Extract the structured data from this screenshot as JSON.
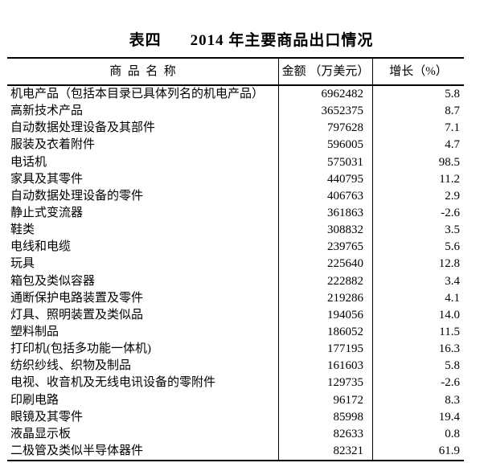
{
  "title": {
    "label": "表四",
    "text": "2014 年主要商品出口情况"
  },
  "table": {
    "headers": [
      "商  品  名  称",
      "金额 （万美元）",
      "增长（%）"
    ],
    "rows": [
      {
        "name": "机电产品（包括本目录已具体列名的机电产品）",
        "amount": "6962482",
        "growth": "5.8"
      },
      {
        "name": "高新技术产品",
        "amount": "3652375",
        "growth": "8.7"
      },
      {
        "name": "自动数据处理设备及其部件",
        "amount": "797628",
        "growth": "7.1"
      },
      {
        "name": "服装及衣着附件",
        "amount": "596005",
        "growth": "4.7"
      },
      {
        "name": "电话机",
        "amount": "575031",
        "growth": "98.5"
      },
      {
        "name": "家具及其零件",
        "amount": "440795",
        "growth": "11.2"
      },
      {
        "name": "自动数据处理设备的零件",
        "amount": "406763",
        "growth": "2.9"
      },
      {
        "name": "静止式变流器",
        "amount": "361863",
        "growth": "-2.6"
      },
      {
        "name": "鞋类",
        "amount": "308832",
        "growth": "3.5"
      },
      {
        "name": "电线和电缆",
        "amount": "239765",
        "growth": "5.6"
      },
      {
        "name": "玩具",
        "amount": "225640",
        "growth": "12.8"
      },
      {
        "name": "箱包及类似容器",
        "amount": "222882",
        "growth": "3.4"
      },
      {
        "name": "通断保护电路装置及零件",
        "amount": "219286",
        "growth": "4.1"
      },
      {
        "name": "灯具、照明装置及类似品",
        "amount": "194056",
        "growth": "14.0"
      },
      {
        "name": "塑料制品",
        "amount": "186052",
        "growth": "11.5"
      },
      {
        "name": "打印机(包括多功能一体机)",
        "amount": "177195",
        "growth": "16.3"
      },
      {
        "name": "纺织纱线、织物及制品",
        "amount": "161603",
        "growth": "5.8"
      },
      {
        "name": "电视、收音机及无线电讯设备的零附件",
        "amount": "129735",
        "growth": "-2.6"
      },
      {
        "name": "印刷电路",
        "amount": "96172",
        "growth": "8.3"
      },
      {
        "name": "眼镜及其零件",
        "amount": "85998",
        "growth": "19.4"
      },
      {
        "name": "液晶显示板",
        "amount": "82633",
        "growth": "0.8"
      },
      {
        "name": "二极管及类似半导体器件",
        "amount": "82321",
        "growth": "61.9"
      }
    ]
  }
}
